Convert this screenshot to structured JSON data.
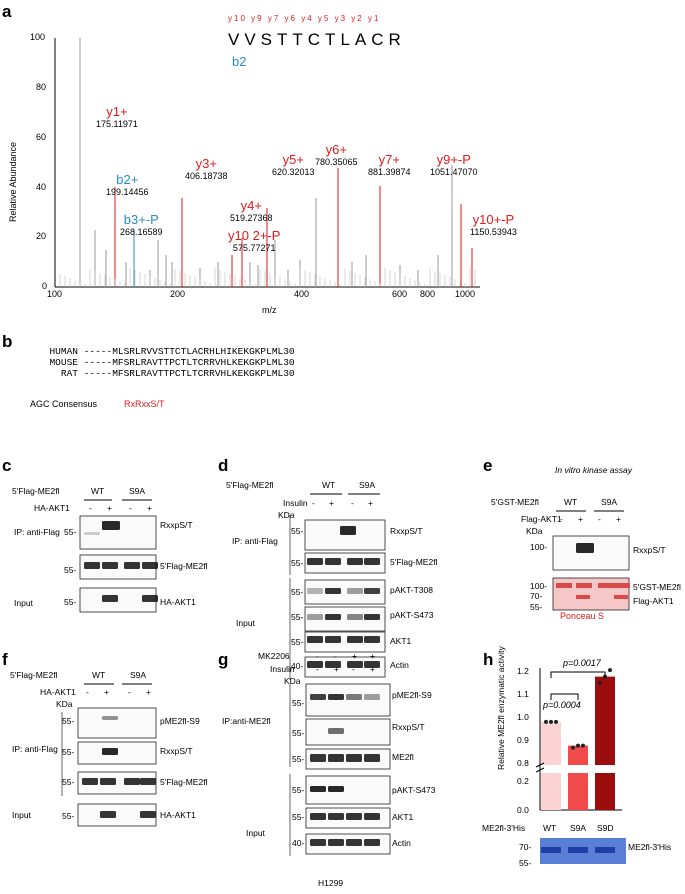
{
  "panels": [
    "a",
    "b",
    "c",
    "d",
    "e",
    "f",
    "g",
    "h"
  ],
  "spectrum": {
    "ylabel": "Relative Abundance",
    "xlabel": "m/z",
    "xticks": [
      "100",
      "200",
      "400",
      "600",
      "800",
      "1000"
    ],
    "yticks": [
      "0",
      "20",
      "40",
      "60",
      "80",
      "100"
    ],
    "peptide": "VVSTTCTLACR",
    "ion_labels": [
      "y10",
      "y9",
      "y7",
      "y6",
      "y4",
      "y5",
      "y3",
      "y2",
      "y1"
    ],
    "b2": "b2",
    "annotations": [
      {
        "ion": "y1+",
        "mz": "175.11971"
      },
      {
        "ion": "b2+",
        "mz": "199.14456"
      },
      {
        "ion": "b3+-P",
        "mz": "268.16589"
      },
      {
        "ion": "y3+",
        "mz": "406.18738"
      },
      {
        "ion": "y4+",
        "mz": "519.27368"
      },
      {
        "ion": "y10 2+-P",
        "mz": "575.77271"
      },
      {
        "ion": "y5+",
        "mz": "620.32013"
      },
      {
        "ion": "y6+",
        "mz": "780.35065"
      },
      {
        "ion": "y7+",
        "mz": "881.39874"
      },
      {
        "ion": "y9+-P",
        "mz": "1051.47070"
      },
      {
        "ion": "y10+-P",
        "mz": "1150.53943"
      }
    ]
  },
  "alignment": {
    "rows": [
      {
        "species": "HUMAN",
        "seq": "-----MLSRLRVVSTTCTLACRHLHIKEKGKPLML30"
      },
      {
        "species": "MOUSE",
        "seq": "-----MFSRLRAVTTPCTLTCRRVHLKEKGKPLML30"
      },
      {
        "species": "RAT",
        "seq": "-----MFSRLRAVTTPCTLTCRRVHLKEKGKPLML30"
      }
    ],
    "consensus_label": "AGC Consensus",
    "consensus": "RxRxxS/T"
  },
  "c": {
    "construct": "5'Flag-ME2fl",
    "wt": "WT",
    "s9a": "S9A",
    "treat": "HA-AKT1",
    "signs": [
      "-",
      "+",
      "-",
      "+"
    ],
    "ip": "IP: anti-Flag",
    "input": "Input",
    "bands": [
      "RxxpS/T",
      "5'Flag-ME2fl",
      "HA-AKT1"
    ],
    "mw": [
      "55-",
      "55-",
      "55-"
    ]
  },
  "d": {
    "construct": "5'Flag-ME2fl",
    "wt": "WT",
    "s9a": "S9A",
    "treat": "Insulin",
    "signs": [
      "-",
      "+",
      "-",
      "+"
    ],
    "kda": "KDa",
    "ip": "IP: anti-Flag",
    "input": "Input",
    "bands": [
      "RxxpS/T",
      "5'Flag-ME2fl",
      "pAKT-T308",
      "pAKT-S473",
      "AKT1",
      "Actin"
    ],
    "mw": [
      "55-",
      "55-",
      "55-",
      "55-",
      "55-",
      "40-"
    ]
  },
  "e": {
    "title": "In vitro kinase assay",
    "construct": "5'GST-ME2fl",
    "wt": "WT",
    "s9a": "S9A",
    "treat": "Flag-AKT1",
    "signs": [
      "-",
      "+",
      "-",
      "+"
    ],
    "kda": "KDa",
    "bands": [
      "RxxpS/T",
      "5'GST-ME2fl",
      "Flag-AKT1"
    ],
    "mw": [
      "100-",
      "100-",
      "70-",
      "55-"
    ],
    "stain": "Ponceau S"
  },
  "f": {
    "construct": "5'Flag-ME2fl",
    "wt": "WT",
    "s9a": "S9A",
    "treat": "HA-AKT1",
    "signs": [
      "-",
      "+",
      "-",
      "+"
    ],
    "kda": "KDa",
    "ip": "IP: anti-Flag",
    "input": "Input",
    "bands": [
      "pME2fl-S9",
      "RxxpS/T",
      "5'Flag-ME2fl",
      "HA-AKT1"
    ],
    "mw": [
      "55-",
      "55-",
      "55-",
      "55-"
    ]
  },
  "g": {
    "treat1": "MK2206",
    "treat2": "Insulin",
    "signs1": [
      "-",
      "-",
      "+",
      "+"
    ],
    "signs2": [
      "-",
      "+",
      "-",
      "+"
    ],
    "kda": "KDa",
    "ip": "IP:anti-ME2fl",
    "input": "Input",
    "bands": [
      "pME2fl-S9",
      "RxxpS/T",
      "ME2fl",
      "pAKT-S473",
      "AKT1",
      "Actin"
    ],
    "mw": [
      "55-",
      "55-",
      "55-",
      "55-",
      "55-",
      "40-"
    ],
    "cell": "H1299"
  },
  "h": {
    "ylabel": "Relative ME2fl enzymatic activity",
    "categories": [
      "WT",
      "S9A",
      "S9D"
    ],
    "row_label": "ME2fl-3'His",
    "p1": "p=0.0004",
    "p2": "p=0.0017",
    "yticks": [
      "0.0",
      "0.2",
      "0.8",
      "0.9",
      "1.0",
      "1.1",
      "1.2"
    ],
    "mw": [
      "70-",
      "55-"
    ],
    "band": "ME2fl-3'His"
  },
  "chart_data": {
    "type": "bar",
    "categories": [
      "WT",
      "S9A",
      "S9D"
    ],
    "values": [
      1.0,
      0.89,
      1.21
    ],
    "points": [
      [
        1.0,
        1.0,
        1.0
      ],
      [
        0.88,
        0.89,
        0.89
      ],
      [
        1.18,
        1.21,
        1.24
      ]
    ],
    "ylabel": "Relative ME2fl enzymatic activity",
    "ylim": [
      0,
      1.25
    ],
    "axis_break": [
      0.2,
      0.8
    ],
    "colors": [
      "#fcd3d3",
      "#f04a4a",
      "#9b0d0d"
    ]
  }
}
